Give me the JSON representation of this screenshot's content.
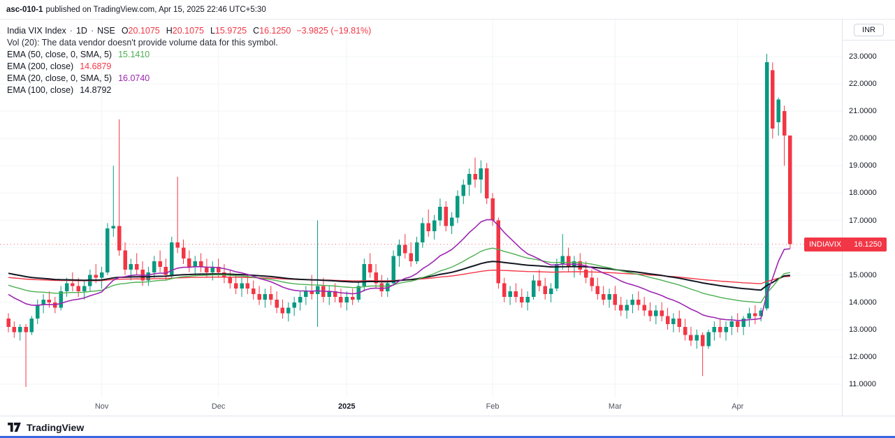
{
  "header": {
    "doc_id": "asc-010-1",
    "publish_text": "published on TradingView.com, Apr 15, 2025 22:46 UTC+5:30"
  },
  "legend": {
    "symbol": "India VIX Index",
    "separator": "·",
    "interval": "1D",
    "exchange": "NSE",
    "ohlc": {
      "o": {
        "label": "O",
        "value": "20.1075"
      },
      "h": {
        "label": "H",
        "value": "20.1075"
      },
      "l": {
        "label": "L",
        "value": "15.9725"
      },
      "c": {
        "label": "C",
        "value": "16.1250"
      }
    },
    "change": "−3.9825 (−19.81%)",
    "change_color": "#f23645",
    "vol_text": "Vol (20): The data vendor doesn't provide volume data for this symbol.",
    "emas": [
      {
        "label": "EMA (50, close, 0, SMA, 5)",
        "value": "15.1410",
        "color": "#4caf50"
      },
      {
        "label": "EMA (200, close)",
        "value": "14.6879",
        "color": "#f23645"
      },
      {
        "label": "EMA (20, close, 0, SMA, 5)",
        "value": "16.0740",
        "color": "#9c27b0"
      },
      {
        "label": "EMA (100, close)",
        "value": "14.8792",
        "color": "#131722"
      }
    ]
  },
  "price_axis": {
    "currency": "INR"
  },
  "price_tag": {
    "symbol": "INDIAVIX",
    "value": "16.1250",
    "color": "#f23645"
  },
  "footer": {
    "brand": "TradingView"
  },
  "chart_data": {
    "type": "candlestick",
    "title": "India VIX Index",
    "interval": "1D",
    "exchange": "NSE",
    "currency": "INR",
    "last_price": 16.125,
    "last_candle": {
      "open": 20.1075,
      "high": 20.1075,
      "low": 15.9725,
      "close": 16.125,
      "change": -3.9825,
      "change_pct": -19.81
    },
    "ylim": [
      10.6,
      23.8
    ],
    "colors": {
      "up": "#089981",
      "down": "#f23645",
      "grid": "#f2f4f7"
    },
    "y_ticks": [
      "23.0000",
      "22.0000",
      "21.0000",
      "20.0000",
      "19.0000",
      "18.0000",
      "17.0000",
      "16.0000",
      "15.0000",
      "14.0000",
      "13.0000",
      "12.0000",
      "11.0000"
    ],
    "x_ticks": [
      {
        "label": "Nov",
        "index": 16
      },
      {
        "label": "Dec",
        "index": 36
      },
      {
        "label": "2025",
        "index": 58,
        "bold": true
      },
      {
        "label": "Feb",
        "index": 83
      },
      {
        "label": "Mar",
        "index": 104
      },
      {
        "label": "Apr",
        "index": 125
      }
    ],
    "overlays": [
      {
        "name": "EMA 200",
        "period": 200,
        "color": "#f23645",
        "width": 1.4
      },
      {
        "name": "EMA 100",
        "period": 100,
        "color": "#131722",
        "width": 2
      },
      {
        "name": "EMA 50",
        "period": 50,
        "color": "#4caf50",
        "width": 1.4
      },
      {
        "name": "EMA 20",
        "period": 20,
        "color": "#9c27b0",
        "width": 1.6
      }
    ],
    "ohlc": [
      [
        13.4,
        13.6,
        12.9,
        13.1
      ],
      [
        13.1,
        13.3,
        12.7,
        12.9
      ],
      [
        12.9,
        13.2,
        12.6,
        13.1
      ],
      [
        13.1,
        13.2,
        10.9,
        12.9
      ],
      [
        12.9,
        13.5,
        12.8,
        13.4
      ],
      [
        13.4,
        14.1,
        13.2,
        13.9
      ],
      [
        13.9,
        14.3,
        13.6,
        14.1
      ],
      [
        14.1,
        14.4,
        13.8,
        14.0
      ],
      [
        14.0,
        14.2,
        13.6,
        13.8
      ],
      [
        13.8,
        14.6,
        13.7,
        14.4
      ],
      [
        14.4,
        14.9,
        14.2,
        14.7
      ],
      [
        14.7,
        15.1,
        14.4,
        14.6
      ],
      [
        14.6,
        14.9,
        14.2,
        14.4
      ],
      [
        14.4,
        14.8,
        14.1,
        14.6
      ],
      [
        14.6,
        15.2,
        14.4,
        15.0
      ],
      [
        15.0,
        15.4,
        14.7,
        14.9
      ],
      [
        14.9,
        15.3,
        14.5,
        15.1
      ],
      [
        15.1,
        16.9,
        15.0,
        16.7
      ],
      [
        16.7,
        19.0,
        16.4,
        16.8
      ],
      [
        16.8,
        20.7,
        15.7,
        15.9
      ],
      [
        15.9,
        16.2,
        15.0,
        15.2
      ],
      [
        15.2,
        15.6,
        14.8,
        15.4
      ],
      [
        15.4,
        15.8,
        15.0,
        15.2
      ],
      [
        15.2,
        15.5,
        14.6,
        14.8
      ],
      [
        14.8,
        15.3,
        14.6,
        15.1
      ],
      [
        15.1,
        15.7,
        14.9,
        15.5
      ],
      [
        15.5,
        15.9,
        15.1,
        15.3
      ],
      [
        15.3,
        15.6,
        14.8,
        15.0
      ],
      [
        15.0,
        16.4,
        14.9,
        16.2
      ],
      [
        16.2,
        18.6,
        15.8,
        16.0
      ],
      [
        16.0,
        16.3,
        15.4,
        15.6
      ],
      [
        15.6,
        15.9,
        15.1,
        15.3
      ],
      [
        15.3,
        15.7,
        15.0,
        15.5
      ],
      [
        15.5,
        15.8,
        15.1,
        15.3
      ],
      [
        15.3,
        15.6,
        14.9,
        15.1
      ],
      [
        15.1,
        15.5,
        14.8,
        15.3
      ],
      [
        15.3,
        15.6,
        14.9,
        15.1
      ],
      [
        15.1,
        15.4,
        14.7,
        14.9
      ],
      [
        14.9,
        15.2,
        14.5,
        14.7
      ],
      [
        14.7,
        15.0,
        14.3,
        14.5
      ],
      [
        14.5,
        14.9,
        14.2,
        14.7
      ],
      [
        14.7,
        15.0,
        14.3,
        14.5
      ],
      [
        14.5,
        14.8,
        14.1,
        14.3
      ],
      [
        14.3,
        14.6,
        13.9,
        14.1
      ],
      [
        14.1,
        14.5,
        13.8,
        14.3
      ],
      [
        14.3,
        14.6,
        13.9,
        14.1
      ],
      [
        14.1,
        14.4,
        13.6,
        13.8
      ],
      [
        13.8,
        14.1,
        13.4,
        13.6
      ],
      [
        13.6,
        14.0,
        13.3,
        13.8
      ],
      [
        13.8,
        14.2,
        13.5,
        14.0
      ],
      [
        14.0,
        14.4,
        13.7,
        14.2
      ],
      [
        14.2,
        14.6,
        13.9,
        14.4
      ],
      [
        14.4,
        15.0,
        14.1,
        14.3
      ],
      [
        14.3,
        17.0,
        13.1,
        14.6
      ],
      [
        14.6,
        14.9,
        14.0,
        14.2
      ],
      [
        14.2,
        14.6,
        13.9,
        14.4
      ],
      [
        14.4,
        14.7,
        14.0,
        14.2
      ],
      [
        14.2,
        14.5,
        13.8,
        14.0
      ],
      [
        14.0,
        14.4,
        13.7,
        14.2
      ],
      [
        14.2,
        14.5,
        13.9,
        14.1
      ],
      [
        14.1,
        14.8,
        14.0,
        14.6
      ],
      [
        14.6,
        15.6,
        14.4,
        15.4
      ],
      [
        15.4,
        15.8,
        14.9,
        15.1
      ],
      [
        15.1,
        15.4,
        14.5,
        14.7
      ],
      [
        14.7,
        15.0,
        14.2,
        14.4
      ],
      [
        14.4,
        14.9,
        14.2,
        14.7
      ],
      [
        14.7,
        15.9,
        14.6,
        15.7
      ],
      [
        15.7,
        16.3,
        15.3,
        16.1
      ],
      [
        16.1,
        16.5,
        15.6,
        15.8
      ],
      [
        15.8,
        16.2,
        15.3,
        15.5
      ],
      [
        15.5,
        16.4,
        15.4,
        16.2
      ],
      [
        16.2,
        17.1,
        16.0,
        16.9
      ],
      [
        16.9,
        17.4,
        16.4,
        16.6
      ],
      [
        16.6,
        17.2,
        16.3,
        17.0
      ],
      [
        17.0,
        17.8,
        16.8,
        17.5
      ],
      [
        17.5,
        17.7,
        16.6,
        16.8
      ],
      [
        16.8,
        17.3,
        16.5,
        17.1
      ],
      [
        17.1,
        18.1,
        16.9,
        17.9
      ],
      [
        17.9,
        18.5,
        17.6,
        18.3
      ],
      [
        18.3,
        18.9,
        17.9,
        18.7
      ],
      [
        18.7,
        19.3,
        18.2,
        18.5
      ],
      [
        18.5,
        19.2,
        18.0,
        18.9
      ],
      [
        18.9,
        19.1,
        17.6,
        17.8
      ],
      [
        17.8,
        18.0,
        16.8,
        17.0
      ],
      [
        17.0,
        17.1,
        14.5,
        14.7
      ],
      [
        14.7,
        14.9,
        14.0,
        14.2
      ],
      [
        14.2,
        14.6,
        13.9,
        14.4
      ],
      [
        14.4,
        14.7,
        14.0,
        14.2
      ],
      [
        14.2,
        14.5,
        13.8,
        14.0
      ],
      [
        14.0,
        14.4,
        13.7,
        14.2
      ],
      [
        14.2,
        15.0,
        14.1,
        14.8
      ],
      [
        14.8,
        15.2,
        14.4,
        14.6
      ],
      [
        14.6,
        14.9,
        14.1,
        14.3
      ],
      [
        14.3,
        14.7,
        14.0,
        14.5
      ],
      [
        14.5,
        15.6,
        14.4,
        15.4
      ],
      [
        15.4,
        16.5,
        15.2,
        15.7
      ],
      [
        15.7,
        16.0,
        15.1,
        15.3
      ],
      [
        15.3,
        15.7,
        14.9,
        15.5
      ],
      [
        15.5,
        15.8,
        15.0,
        15.2
      ],
      [
        15.2,
        15.5,
        14.7,
        14.9
      ],
      [
        14.9,
        15.2,
        14.4,
        14.6
      ],
      [
        14.6,
        14.9,
        14.1,
        14.3
      ],
      [
        14.3,
        14.6,
        13.9,
        14.1
      ],
      [
        14.1,
        14.5,
        13.8,
        14.3
      ],
      [
        14.3,
        14.6,
        13.7,
        13.9
      ],
      [
        13.9,
        14.2,
        13.5,
        13.7
      ],
      [
        13.7,
        14.1,
        13.4,
        13.9
      ],
      [
        13.9,
        14.3,
        13.6,
        14.1
      ],
      [
        14.1,
        14.4,
        13.7,
        13.9
      ],
      [
        13.9,
        14.2,
        13.5,
        13.7
      ],
      [
        13.7,
        14.0,
        13.3,
        13.5
      ],
      [
        13.5,
        13.9,
        13.2,
        13.7
      ],
      [
        13.7,
        14.0,
        13.3,
        13.5
      ],
      [
        13.5,
        13.8,
        13.0,
        13.2
      ],
      [
        13.2,
        13.6,
        12.9,
        13.4
      ],
      [
        13.4,
        13.7,
        12.9,
        13.1
      ],
      [
        13.1,
        13.4,
        12.6,
        12.8
      ],
      [
        12.8,
        13.1,
        12.4,
        12.6
      ],
      [
        12.6,
        13.0,
        12.3,
        12.8
      ],
      [
        12.8,
        12.9,
        11.3,
        12.4
      ],
      [
        12.4,
        13.0,
        12.3,
        12.9
      ],
      [
        12.9,
        13.3,
        12.6,
        13.1
      ],
      [
        13.1,
        13.4,
        12.7,
        12.9
      ],
      [
        12.9,
        13.3,
        12.6,
        13.1
      ],
      [
        13.1,
        13.5,
        12.8,
        13.3
      ],
      [
        13.3,
        13.6,
        12.9,
        13.1
      ],
      [
        13.1,
        13.5,
        12.8,
        13.4
      ],
      [
        13.4,
        13.8,
        13.1,
        13.6
      ],
      [
        13.6,
        13.9,
        13.2,
        13.5
      ],
      [
        13.5,
        13.8,
        13.3,
        13.7
      ],
      [
        13.78,
        23.1,
        13.7,
        22.79
      ],
      [
        22.5,
        22.79,
        20.0,
        20.36
      ],
      [
        20.6,
        21.5,
        20.1,
        21.43
      ],
      [
        21.0,
        21.2,
        19.0,
        20.11
      ],
      [
        20.1075,
        20.1075,
        15.9725,
        16.125
      ]
    ]
  }
}
